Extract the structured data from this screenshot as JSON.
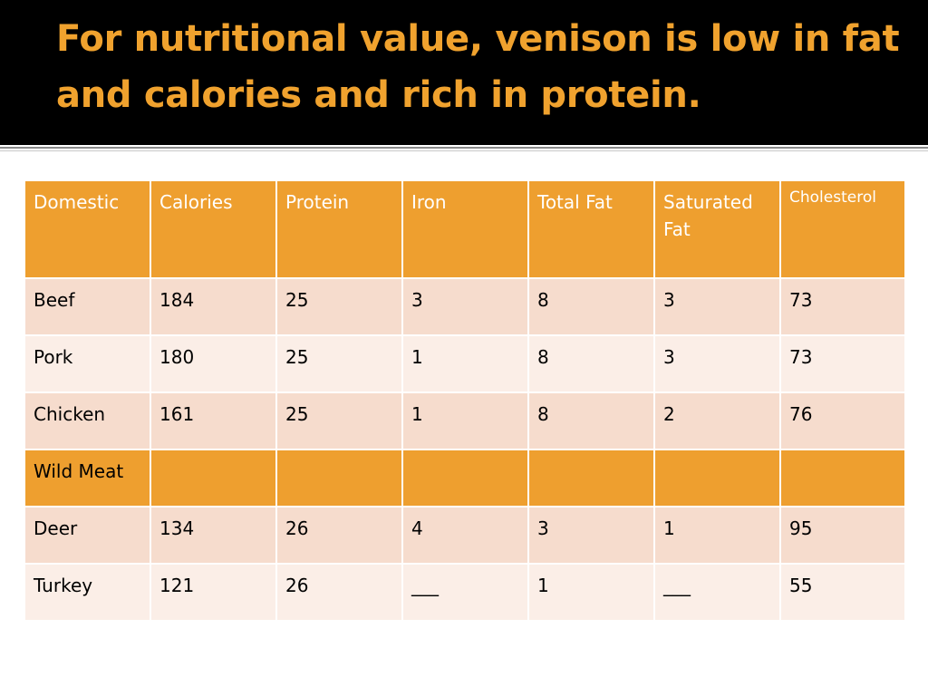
{
  "slide": {
    "title": "For nutritional value, venison is low in fat and calories and rich in protein."
  },
  "table": {
    "headers": [
      "Domestic",
      "Calories",
      "Protein",
      "Iron",
      "Total Fat",
      "Saturated Fat",
      "Cholesterol"
    ],
    "rows": [
      [
        "Beef",
        "184",
        "25",
        "3",
        "8",
        "3",
        "73"
      ],
      [
        "Pork",
        "180",
        "25",
        "1",
        "8",
        "3",
        "73"
      ],
      [
        "Chicken",
        "161",
        "25",
        "1",
        "8",
        "2",
        "76"
      ],
      [
        "Wild Meat",
        "",
        "",
        "",
        "",
        "",
        ""
      ],
      [
        "Deer",
        "134",
        "26",
        "4",
        "3",
        "1",
        "95"
      ],
      [
        "Turkey",
        "121",
        "26",
        "___",
        "1",
        "___",
        "55"
      ]
    ]
  },
  "colors": {
    "title_bar": "#000000",
    "title_text": "#f0a22e",
    "header_fill": "#ee9f2f",
    "row_fill_a": "#f6dccd",
    "row_fill_b": "#fbeee7"
  }
}
